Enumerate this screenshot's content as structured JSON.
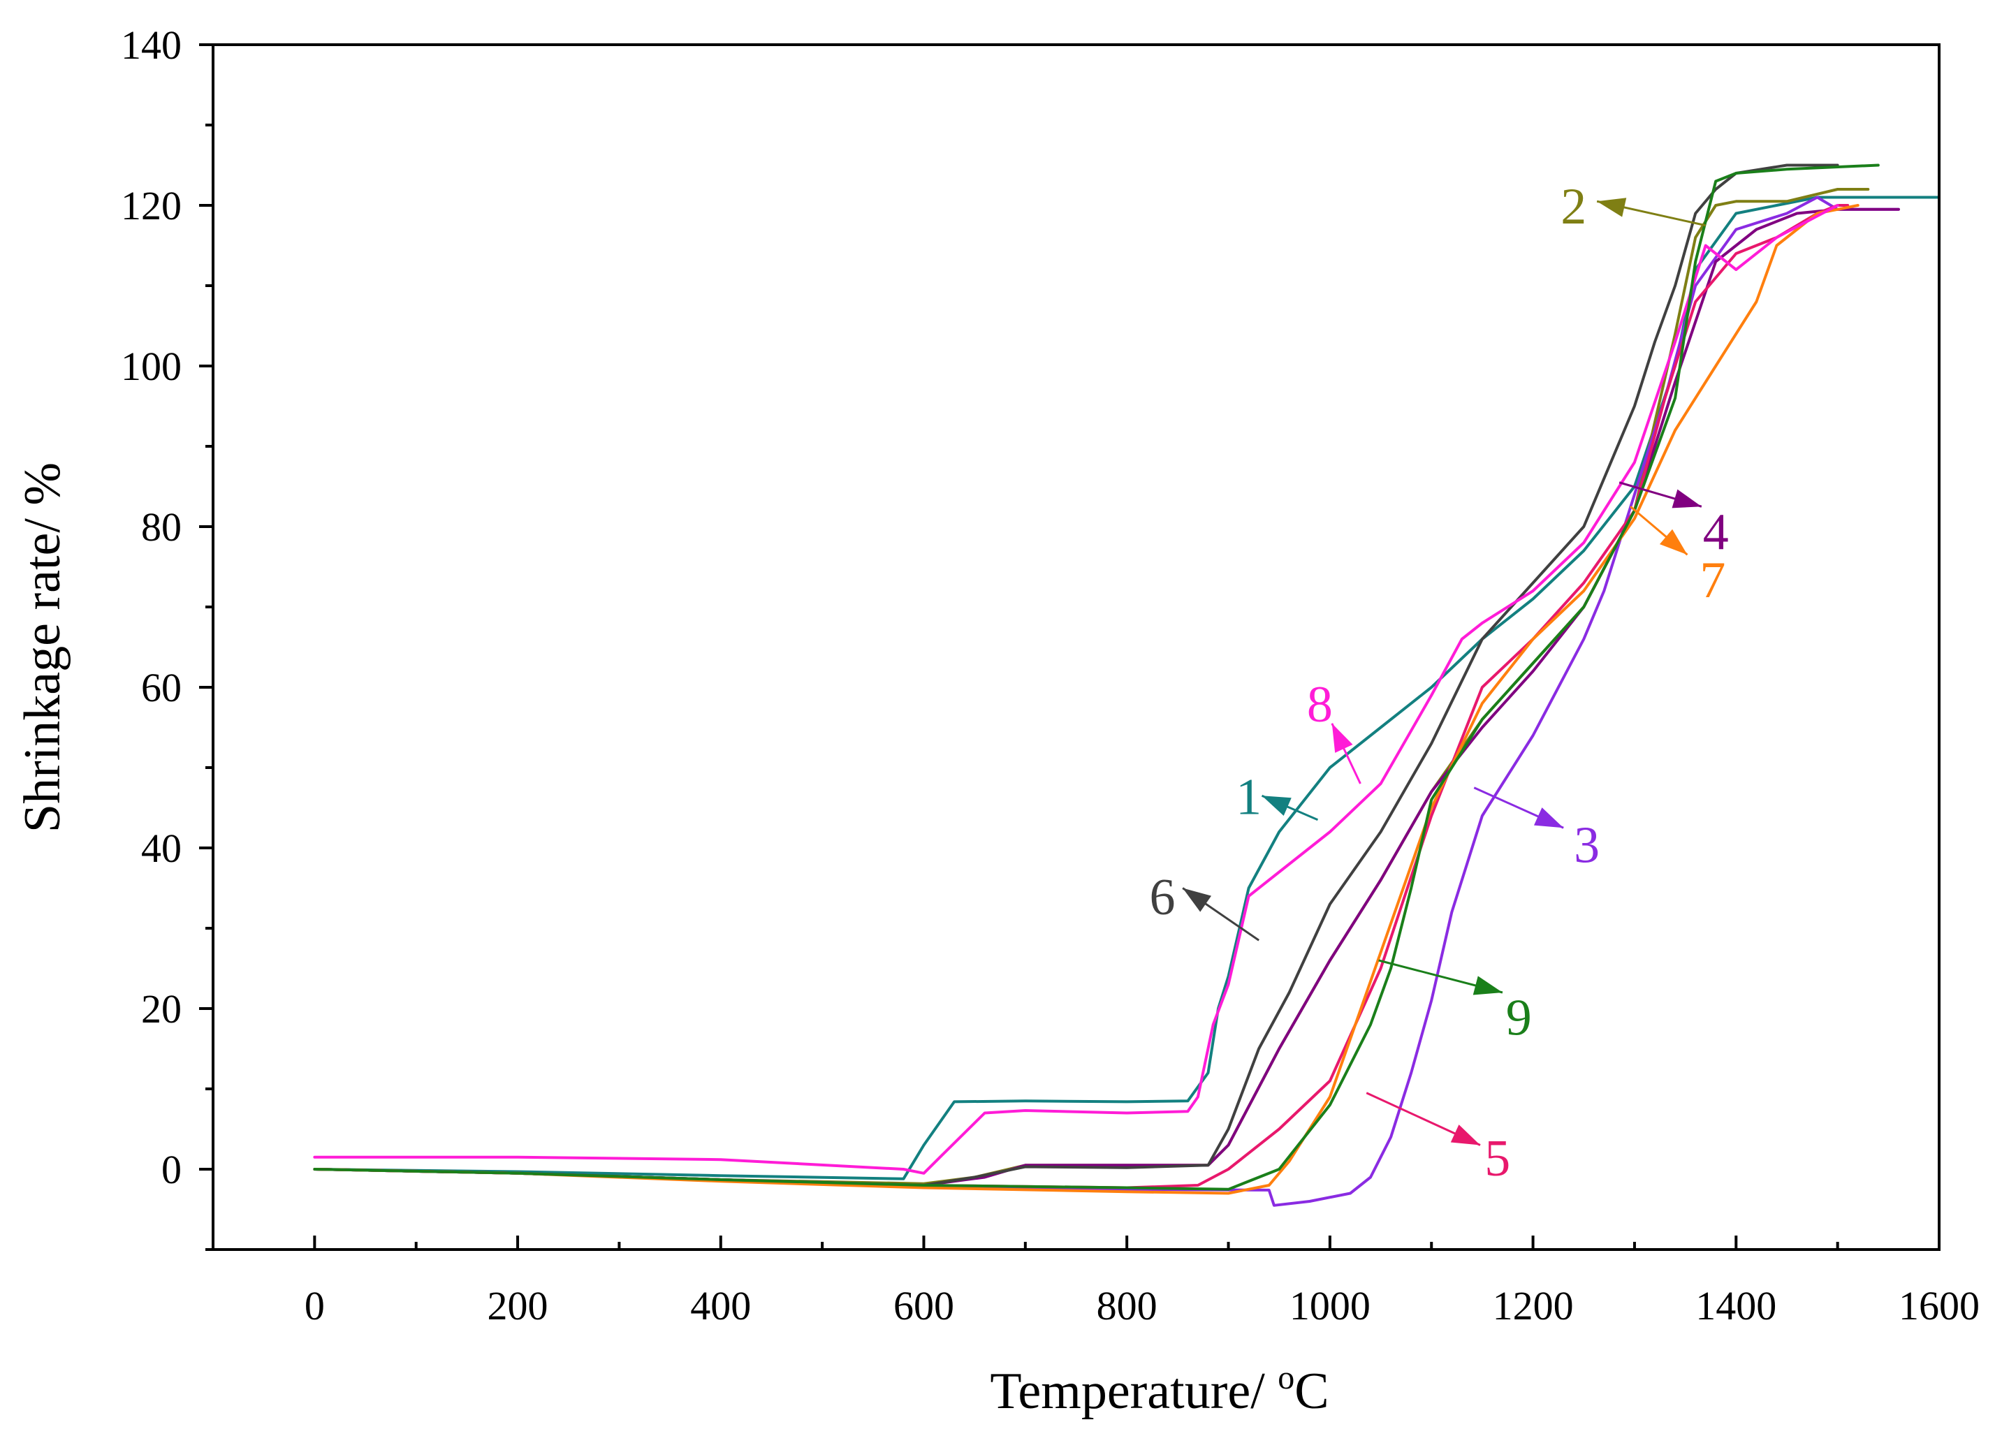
{
  "chart_data": {
    "type": "line",
    "xlabel": "Temperature/ ",
    "xlabel_sup": "o",
    "xlabel_unit": "C",
    "ylabel": "Shrinkage rate/ %",
    "xlim": [
      -100,
      1600
    ],
    "ylim": [
      -10,
      140
    ],
    "xticks": [
      0,
      200,
      400,
      600,
      800,
      1000,
      1200,
      1400,
      1600
    ],
    "yticks": [
      0,
      20,
      40,
      60,
      80,
      100,
      120,
      140
    ],
    "series": [
      {
        "name": "1",
        "color": "#138080",
        "x": [
          0,
          200,
          400,
          580,
          600,
          630,
          700,
          800,
          860,
          880,
          890,
          900,
          920,
          950,
          1000,
          1050,
          1100,
          1150,
          1200,
          1250,
          1300,
          1340,
          1360,
          1400,
          1480,
          1500,
          1600
        ],
        "y": [
          0,
          -0.3,
          -0.8,
          -1.2,
          3,
          8.4,
          8.5,
          8.4,
          8.5,
          12,
          20,
          24,
          35,
          42,
          50,
          55,
          60,
          66,
          71,
          77,
          85,
          100,
          112,
          119,
          121,
          121,
          121
        ]
      },
      {
        "name": "2",
        "color": "#7F7F14",
        "x": [
          0,
          200,
          400,
          600,
          650,
          700,
          800,
          880,
          900,
          950,
          1000,
          1050,
          1100,
          1150,
          1200,
          1250,
          1300,
          1340,
          1360,
          1380,
          1400,
          1450,
          1500,
          1530
        ],
        "y": [
          0,
          -0.5,
          -1.3,
          -1.8,
          -1,
          0.5,
          0.5,
          0.5,
          3,
          15,
          26,
          36,
          47,
          56,
          63,
          70,
          82,
          104,
          116,
          120,
          120.5,
          120.5,
          122,
          122
        ]
      },
      {
        "name": "3",
        "color": "#8A2BE2",
        "x": [
          0,
          200,
          400,
          600,
          800,
          940,
          945,
          980,
          1020,
          1040,
          1060,
          1080,
          1100,
          1120,
          1150,
          1200,
          1250,
          1270,
          1300,
          1330,
          1360,
          1400,
          1450,
          1480,
          1500,
          1560
        ],
        "y": [
          0,
          -0.5,
          -1.3,
          -2,
          -2.5,
          -2.6,
          -4.5,
          -4,
          -3,
          -1,
          4,
          12,
          21,
          32,
          44,
          54,
          66,
          72,
          84,
          96,
          110,
          117,
          119,
          121,
          119.5,
          119.5
        ]
      },
      {
        "name": "4",
        "color": "#800080",
        "x": [
          0,
          200,
          400,
          600,
          660,
          700,
          800,
          880,
          900,
          950,
          1000,
          1050,
          1100,
          1150,
          1200,
          1250,
          1300,
          1340,
          1380,
          1420,
          1460,
          1500,
          1560
        ],
        "y": [
          0,
          -0.5,
          -1.3,
          -2,
          -1,
          0.5,
          0.5,
          0.5,
          3,
          15,
          26,
          36,
          47,
          55,
          62,
          70,
          82,
          98,
          113,
          117,
          119,
          119.5,
          119.5
        ]
      },
      {
        "name": "5",
        "color": "#E8186C",
        "x": [
          0,
          200,
          400,
          600,
          800,
          870,
          900,
          950,
          1000,
          1050,
          1100,
          1150,
          1200,
          1250,
          1300,
          1330,
          1360,
          1400,
          1440,
          1480,
          1500,
          1510
        ],
        "y": [
          0,
          -0.5,
          -1.3,
          -2,
          -2.3,
          -2,
          0,
          5,
          11,
          25,
          44,
          60,
          66,
          73,
          82,
          96,
          108,
          114,
          116,
          119,
          120,
          120
        ]
      },
      {
        "name": "6",
        "color": "#404040",
        "x": [
          0,
          200,
          400,
          600,
          650,
          700,
          800,
          880,
          900,
          930,
          960,
          1000,
          1050,
          1100,
          1150,
          1200,
          1250,
          1300,
          1320,
          1340,
          1360,
          1380,
          1400,
          1450,
          1500
        ],
        "y": [
          0,
          -0.5,
          -1.3,
          -2,
          -1,
          0.3,
          0.2,
          0.5,
          5,
          15,
          22,
          33,
          42,
          53,
          66,
          73,
          80,
          95,
          103,
          110,
          119,
          122,
          124,
          125,
          125
        ]
      },
      {
        "name": "7",
        "color": "#FF7F0E",
        "x": [
          0,
          200,
          400,
          600,
          800,
          900,
          940,
          960,
          1000,
          1050,
          1100,
          1150,
          1200,
          1250,
          1300,
          1340,
          1380,
          1420,
          1440,
          1480,
          1500,
          1520
        ],
        "y": [
          0,
          -0.5,
          -1.5,
          -2.3,
          -2.8,
          -3,
          -2,
          1,
          9,
          27,
          45,
          58,
          66,
          72,
          81,
          92,
          100,
          108,
          115,
          119,
          119.5,
          120
        ]
      },
      {
        "name": "8",
        "color": "#FF1CD7",
        "x": [
          0,
          200,
          400,
          580,
          600,
          620,
          660,
          700,
          800,
          860,
          870,
          885,
          900,
          920,
          950,
          1000,
          1050,
          1100,
          1130,
          1150,
          1200,
          1250,
          1300,
          1340,
          1370,
          1400,
          1440,
          1500
        ],
        "y": [
          1.5,
          1.5,
          1.2,
          0,
          -0.5,
          2,
          7,
          7.3,
          7,
          7.2,
          9,
          18,
          23,
          34,
          37,
          42,
          48,
          59,
          66,
          68,
          72,
          78,
          88,
          103,
          115,
          112,
          116,
          120
        ]
      },
      {
        "name": "9",
        "color": "#1A7F1A",
        "x": [
          0,
          200,
          400,
          600,
          800,
          900,
          950,
          1000,
          1040,
          1060,
          1080,
          1100,
          1150,
          1200,
          1250,
          1300,
          1340,
          1360,
          1380,
          1400,
          1450,
          1540
        ],
        "y": [
          0,
          -0.5,
          -1.3,
          -2,
          -2.3,
          -2.5,
          0,
          8,
          18,
          25,
          35,
          46,
          56,
          63,
          70,
          82,
          96,
          113,
          123,
          124,
          124.5,
          125
        ]
      }
    ],
    "annotations": [
      {
        "label": "1",
        "color": "#138080",
        "text_x": 920,
        "text_y": 46.5,
        "line_from": [
          988,
          43.5
        ],
        "line_to": [
          933,
          46.5
        ]
      },
      {
        "label": "2",
        "color": "#7F7F14",
        "text_x": 1240,
        "text_y": 120,
        "line_from": [
          1370,
          117.5
        ],
        "line_to": [
          1263,
          120.5
        ]
      },
      {
        "label": "3",
        "color": "#8A2BE2",
        "text_x": 1253,
        "text_y": 40.5,
        "line_from": [
          1142,
          47.5
        ],
        "line_to": [
          1230,
          42.5
        ]
      },
      {
        "label": "4",
        "color": "#800080",
        "text_x": 1380,
        "text_y": 79.5,
        "line_from": [
          1285,
          85.5
        ],
        "line_to": [
          1366,
          82.5
        ]
      },
      {
        "label": "5",
        "color": "#E8186C",
        "text_x": 1165,
        "text_y": 1.5,
        "line_from": [
          1036,
          9.5
        ],
        "line_to": [
          1148,
          3
        ]
      },
      {
        "label": "6",
        "color": "#404040",
        "text_x": 835,
        "text_y": 34,
        "line_from": [
          930,
          28.5
        ],
        "line_to": [
          855,
          35
        ]
      },
      {
        "label": "7",
        "color": "#FF7F0E",
        "text_x": 1377,
        "text_y": 73.5,
        "line_from": [
          1296,
          82.5
        ],
        "line_to": [
          1352,
          76.5
        ]
      },
      {
        "label": "8",
        "color": "#FF1CD7",
        "text_x": 990,
        "text_y": 58,
        "line_from": [
          1030,
          48
        ],
        "line_to": [
          1002,
          55.5
        ]
      },
      {
        "label": "9",
        "color": "#1A7F1A",
        "text_x": 1186,
        "text_y": 19,
        "line_from": [
          1048,
          26
        ],
        "line_to": [
          1170,
          22
        ]
      }
    ]
  }
}
